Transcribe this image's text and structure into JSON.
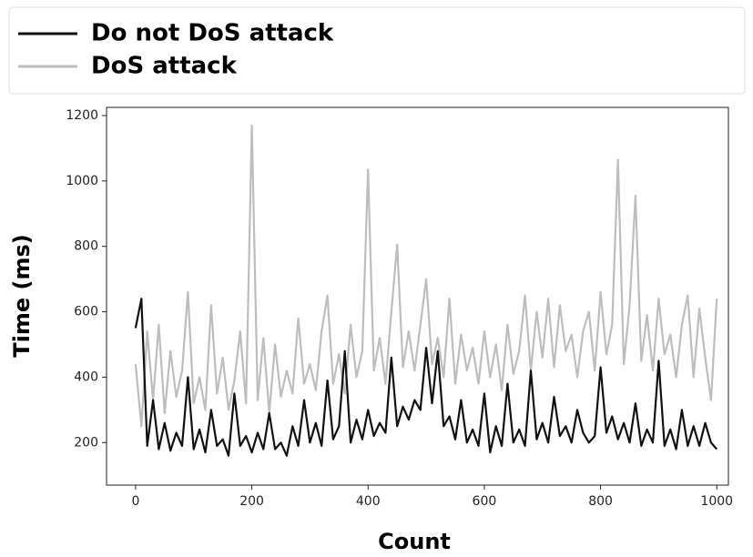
{
  "chart_data": {
    "type": "line",
    "xlabel": "Count",
    "ylabel": "Time (ms)",
    "x": [
      0,
      10,
      20,
      30,
      40,
      50,
      60,
      70,
      80,
      90,
      100,
      110,
      120,
      130,
      140,
      150,
      160,
      170,
      180,
      190,
      200,
      210,
      220,
      230,
      240,
      250,
      260,
      270,
      280,
      290,
      300,
      310,
      320,
      330,
      340,
      350,
      360,
      370,
      380,
      390,
      400,
      410,
      420,
      430,
      440,
      450,
      460,
      470,
      480,
      490,
      500,
      510,
      520,
      530,
      540,
      550,
      560,
      570,
      580,
      590,
      600,
      610,
      620,
      630,
      640,
      650,
      660,
      670,
      680,
      690,
      700,
      710,
      720,
      730,
      740,
      750,
      760,
      770,
      780,
      790,
      800,
      810,
      820,
      830,
      840,
      850,
      860,
      870,
      880,
      890,
      900,
      910,
      920,
      930,
      940,
      950,
      960,
      970,
      980,
      990,
      1000
    ],
    "series": [
      {
        "name": "Do not DoS attack",
        "color": "#111111",
        "values": [
          550,
          640,
          190,
          330,
          180,
          260,
          175,
          230,
          190,
          400,
          180,
          240,
          170,
          300,
          190,
          210,
          160,
          350,
          190,
          220,
          170,
          230,
          180,
          290,
          180,
          200,
          160,
          250,
          190,
          330,
          200,
          260,
          190,
          390,
          210,
          250,
          480,
          200,
          270,
          210,
          300,
          220,
          260,
          230,
          460,
          250,
          310,
          270,
          330,
          300,
          490,
          320,
          480,
          250,
          280,
          210,
          330,
          200,
          240,
          190,
          350,
          170,
          250,
          190,
          380,
          200,
          240,
          190,
          420,
          210,
          260,
          200,
          340,
          220,
          250,
          200,
          300,
          230,
          200,
          220,
          430,
          230,
          280,
          210,
          260,
          200,
          320,
          190,
          240,
          200,
          450,
          190,
          240,
          180,
          300,
          190,
          250,
          190,
          260,
          200,
          180
        ]
      },
      {
        "name": "DoS attack",
        "color": "#bdbdbd",
        "values": [
          440,
          250,
          540,
          330,
          560,
          290,
          480,
          340,
          420,
          660,
          320,
          400,
          300,
          620,
          350,
          460,
          300,
          390,
          540,
          320,
          1170,
          330,
          520,
          290,
          500,
          340,
          420,
          350,
          580,
          380,
          440,
          360,
          540,
          650,
          380,
          470,
          350,
          560,
          400,
          480,
          1035,
          420,
          520,
          380,
          600,
          805,
          430,
          540,
          420,
          560,
          700,
          440,
          520,
          400,
          640,
          380,
          530,
          420,
          490,
          380,
          540,
          400,
          500,
          360,
          560,
          410,
          480,
          650,
          420,
          600,
          460,
          640,
          430,
          620,
          480,
          530,
          400,
          540,
          600,
          420,
          660,
          470,
          560,
          1065,
          440,
          620,
          955,
          450,
          590,
          420,
          640,
          470,
          530,
          400,
          560,
          650,
          400,
          610,
          460,
          330,
          640
        ]
      }
    ],
    "xlim": [
      -50,
      1020
    ],
    "ylim": [
      70,
      1225
    ],
    "xticks": [
      0,
      200,
      400,
      600,
      800,
      1000
    ],
    "yticks": [
      200,
      400,
      600,
      800,
      1000,
      1200
    ],
    "legend": "top"
  }
}
